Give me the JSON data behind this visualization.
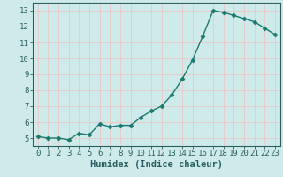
{
  "x": [
    0,
    1,
    2,
    3,
    4,
    5,
    6,
    7,
    8,
    9,
    10,
    11,
    12,
    13,
    14,
    15,
    16,
    17,
    18,
    19,
    20,
    21,
    22,
    23
  ],
  "y": [
    5.1,
    5.0,
    5.0,
    4.9,
    5.3,
    5.2,
    5.9,
    5.7,
    5.8,
    5.8,
    6.3,
    6.7,
    7.0,
    7.7,
    8.7,
    9.9,
    11.4,
    13.0,
    12.9,
    12.7,
    12.5,
    12.3,
    11.9,
    11.5
  ],
  "line_color": "#1a7a6e",
  "marker": "D",
  "markersize": 2.5,
  "linewidth": 1.0,
  "xlabel": "Humidex (Indice chaleur)",
  "xlim": [
    -0.5,
    23.5
  ],
  "ylim": [
    4.5,
    13.5
  ],
  "yticks": [
    5,
    6,
    7,
    8,
    9,
    10,
    11,
    12,
    13
  ],
  "xticks": [
    0,
    1,
    2,
    3,
    4,
    5,
    6,
    7,
    8,
    9,
    10,
    11,
    12,
    13,
    14,
    15,
    16,
    17,
    18,
    19,
    20,
    21,
    22,
    23
  ],
  "bg_color": "#ceeaea",
  "grid_color": "#e8c8c8",
  "grid_linewidth": 0.6,
  "tick_fontsize": 6.5,
  "label_fontsize": 7.5,
  "spine_color": "#2a6060"
}
